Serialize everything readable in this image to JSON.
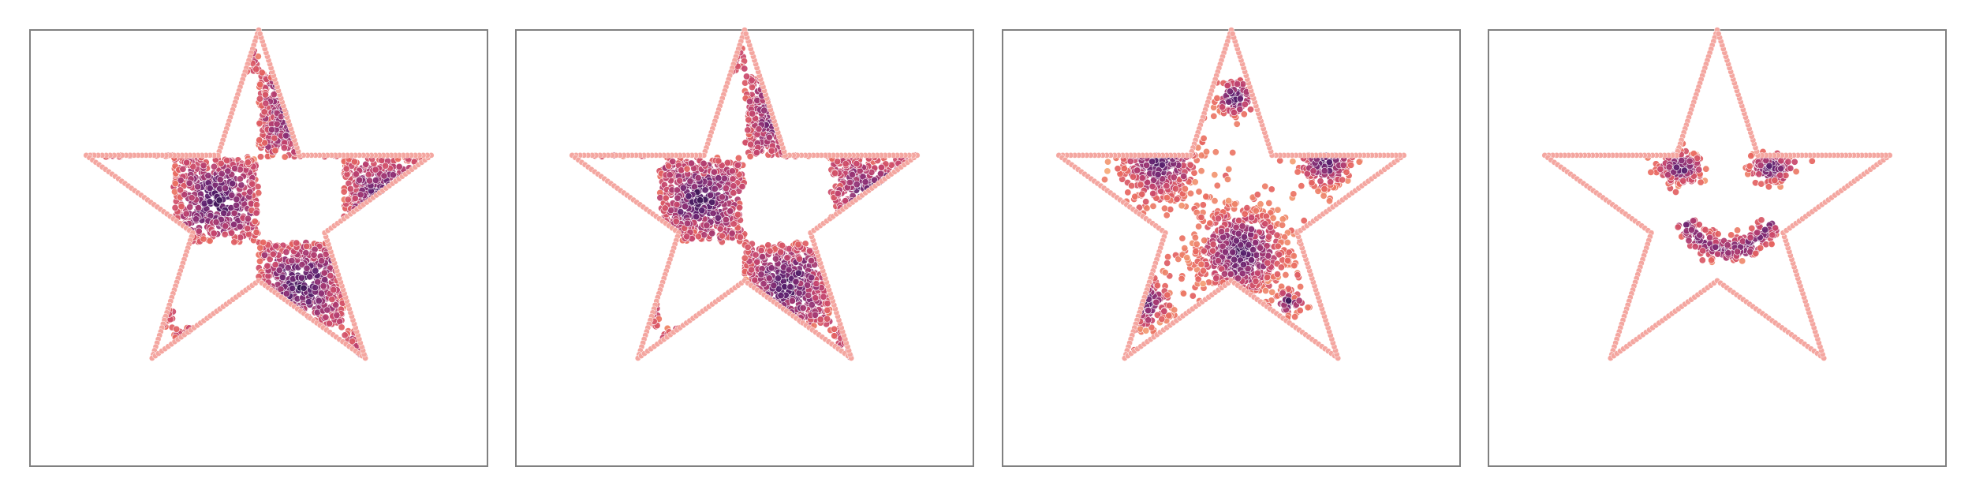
{
  "chart_data": [
    {
      "type": "scatter",
      "title": "",
      "xlabel": "",
      "ylabel": "",
      "xlim": [
        -1.25,
        1.25
      ],
      "ylim": [
        -1.3,
        1.05
      ],
      "grid": false,
      "legend": "none",
      "boundary": {
        "shape": "five-point star",
        "outer_radius": 1.0,
        "inner_radius": 0.382,
        "color": "#f4a6a0"
      },
      "colormap": "magma_r",
      "colormap_stops": [
        "#2a1046",
        "#5a1f6e",
        "#8d2f74",
        "#c4436d",
        "#e8665f",
        "#f6a877"
      ],
      "density": "checkerboard",
      "checker": {
        "cell_size": 0.47,
        "x_origin": -0.47,
        "y_origin": 0.3
      }
    },
    {
      "type": "scatter",
      "title": "",
      "xlabel": "",
      "ylabel": "",
      "xlim": [
        -1.25,
        1.25
      ],
      "ylim": [
        -1.3,
        1.05
      ],
      "grid": false,
      "legend": "none",
      "boundary": {
        "shape": "five-point star",
        "outer_radius": 1.0,
        "inner_radius": 0.382,
        "color": "#f4a6a0"
      },
      "colormap": "magma_r",
      "colormap_stops": [
        "#2a1046",
        "#5a1f6e",
        "#8d2f74",
        "#c4436d",
        "#e8665f",
        "#f6a877"
      ],
      "density": "checkerboard-soft",
      "checker": {
        "cell_size": 0.47,
        "x_origin": -0.47,
        "y_origin": 0.3
      }
    },
    {
      "type": "scatter",
      "title": "",
      "xlabel": "",
      "ylabel": "",
      "xlim": [
        -1.25,
        1.25
      ],
      "ylim": [
        -1.3,
        1.05
      ],
      "grid": false,
      "legend": "none",
      "boundary": {
        "shape": "five-point star",
        "outer_radius": 1.0,
        "inner_radius": 0.382,
        "color": "#f4a6a0"
      },
      "colormap": "magma_r",
      "colormap_stops": [
        "#2a1046",
        "#5a1f6e",
        "#8d2f74",
        "#c4436d",
        "#e8665f",
        "#f6a877"
      ],
      "density": "blobs",
      "blobs": [
        {
          "cx": -0.4,
          "cy": 0.27,
          "r": 0.22
        },
        {
          "cx": 0.05,
          "cy": -0.22,
          "r": 0.26
        },
        {
          "cx": 0.52,
          "cy": 0.28,
          "r": 0.16
        },
        {
          "cx": 0.02,
          "cy": 0.63,
          "r": 0.12
        },
        {
          "cx": -0.48,
          "cy": -0.5,
          "r": 0.15
        },
        {
          "cx": 0.32,
          "cy": -0.5,
          "r": 0.08
        }
      ]
    },
    {
      "type": "scatter",
      "title": "",
      "xlabel": "",
      "ylabel": "",
      "xlim": [
        -1.25,
        1.25
      ],
      "ylim": [
        -1.3,
        1.05
      ],
      "grid": false,
      "legend": "none",
      "boundary": {
        "shape": "five-point star",
        "outer_radius": 1.0,
        "inner_radius": 0.382,
        "color": "#f4a6a0"
      },
      "colormap": "magma_r",
      "colormap_stops": [
        "#2a1046",
        "#5a1f6e",
        "#8d2f74",
        "#c4436d",
        "#e8665f",
        "#f6a877"
      ],
      "density": "smiley",
      "smiley": {
        "eyes": [
          {
            "cx": -0.2,
            "cy": 0.24,
            "rx": 0.13,
            "ry": 0.09
          },
          {
            "cx": 0.3,
            "cy": 0.24,
            "rx": 0.13,
            "ry": 0.09
          }
        ],
        "mouth": {
          "cx": 0.06,
          "cy": 0.05,
          "r": 0.26,
          "angle_start": 205,
          "angle_end": 335
        }
      }
    }
  ]
}
